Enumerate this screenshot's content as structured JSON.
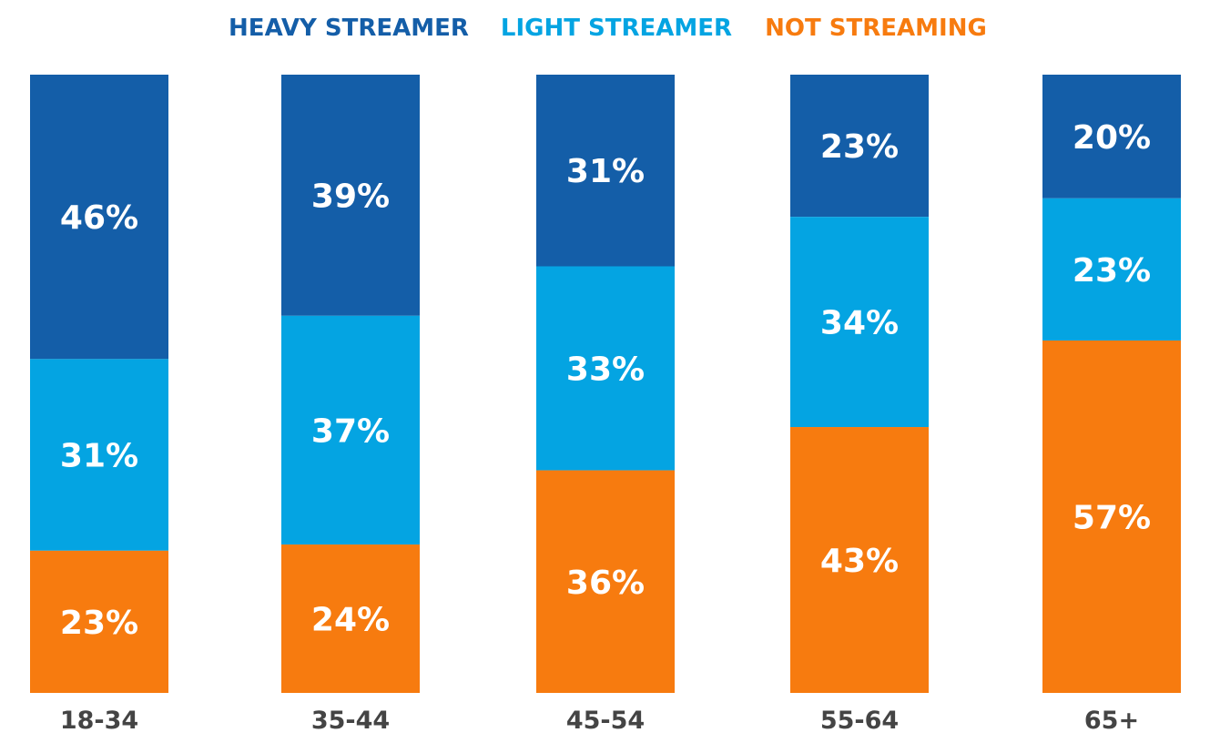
{
  "chart_data": {
    "type": "bar",
    "stacked": true,
    "normalized": true,
    "title": "",
    "xlabel": "",
    "ylabel": "",
    "ylim": [
      0,
      100
    ],
    "grid": false,
    "legend_position": "top",
    "categories": [
      "18-34",
      "35-44",
      "45-54",
      "55-64",
      "65+"
    ],
    "series": [
      {
        "name": "HEAVY STREAMER",
        "color": "#145ea8",
        "values": [
          46,
          39,
          31,
          23,
          20
        ],
        "labels": [
          "46%",
          "39%",
          "31%",
          "23%",
          "20%"
        ]
      },
      {
        "name": "LIGHT STREAMER",
        "color": "#04a4e2",
        "values": [
          31,
          37,
          33,
          34,
          23
        ],
        "labels": [
          "31%",
          "37%",
          "33%",
          "34%",
          "23%"
        ]
      },
      {
        "name": "NOT STREAMING",
        "color": "#f77b0f",
        "values": [
          23,
          24,
          36,
          43,
          57
        ],
        "labels": [
          "23%",
          "24%",
          "36%",
          "43%",
          "57%"
        ]
      }
    ]
  }
}
